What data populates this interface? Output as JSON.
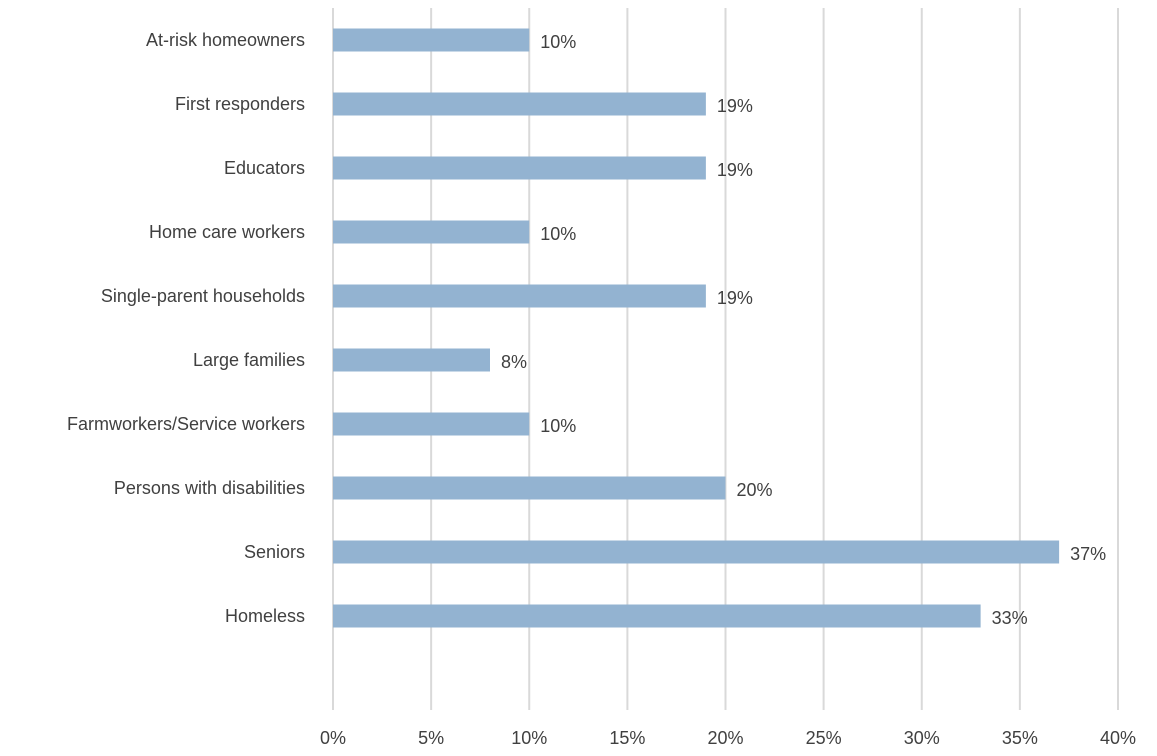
{
  "chart_data": {
    "type": "bar",
    "orientation": "horizontal",
    "title": "",
    "xlabel": "",
    "ylabel": "",
    "categories": [
      "At-risk homeowners",
      "First responders",
      "Educators",
      "Home care workers",
      "Single-parent households",
      "Large families",
      "Farmworkers/Service workers",
      "Persons with disabilities",
      "Seniors",
      "Homeless"
    ],
    "values": [
      10,
      19,
      19,
      10,
      19,
      8,
      10,
      20,
      37,
      33
    ],
    "value_labels": [
      "10%",
      "19%",
      "19%",
      "10%",
      "19%",
      "8%",
      "10%",
      "20%",
      "37%",
      "33%"
    ],
    "xlim": [
      0,
      40
    ],
    "x_ticks": [
      0,
      5,
      10,
      15,
      20,
      25,
      30,
      35,
      40
    ],
    "x_tick_labels": [
      "0%",
      "5%",
      "10%",
      "15%",
      "20%",
      "25%",
      "30%",
      "35%",
      "40%"
    ],
    "grid": "vertical",
    "legend": "none",
    "bar_color": "#93b3d1",
    "grid_color": "#d9d9d9",
    "text_color": "#404040"
  }
}
